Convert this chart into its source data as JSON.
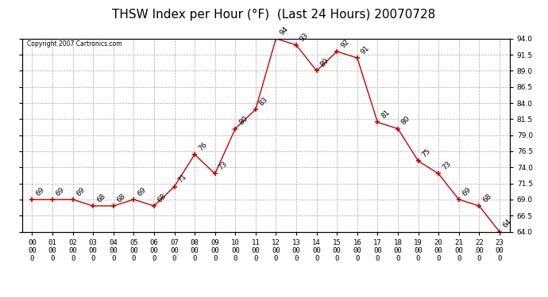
{
  "title": "THSW Index per Hour (°F)  (Last 24 Hours) 20070728",
  "copyright": "Copyright 2007 Cartronics.com",
  "hours": [
    "00:00",
    "01:00",
    "02:00",
    "03:00",
    "04:00",
    "05:00",
    "06:00",
    "07:00",
    "08:00",
    "09:00",
    "10:00",
    "11:00",
    "12:00",
    "13:00",
    "14:00",
    "15:00",
    "16:00",
    "17:00",
    "18:00",
    "19:00",
    "20:00",
    "21:00",
    "22:00",
    "23:00"
  ],
  "values": [
    69,
    69,
    69,
    68,
    68,
    69,
    68,
    71,
    76,
    73,
    80,
    83,
    94,
    93,
    89,
    92,
    91,
    81,
    80,
    75,
    73,
    69,
    68,
    64
  ],
  "line_color": "#cc0000",
  "marker_color": "#cc0000",
  "bg_color": "#ffffff",
  "grid_color": "#aaaaaa",
  "ylim_min": 64.0,
  "ylim_max": 94.0,
  "ytick_interval": 2.5,
  "title_fontsize": 11,
  "label_fontsize": 6.5,
  "annotation_fontsize": 6.5
}
